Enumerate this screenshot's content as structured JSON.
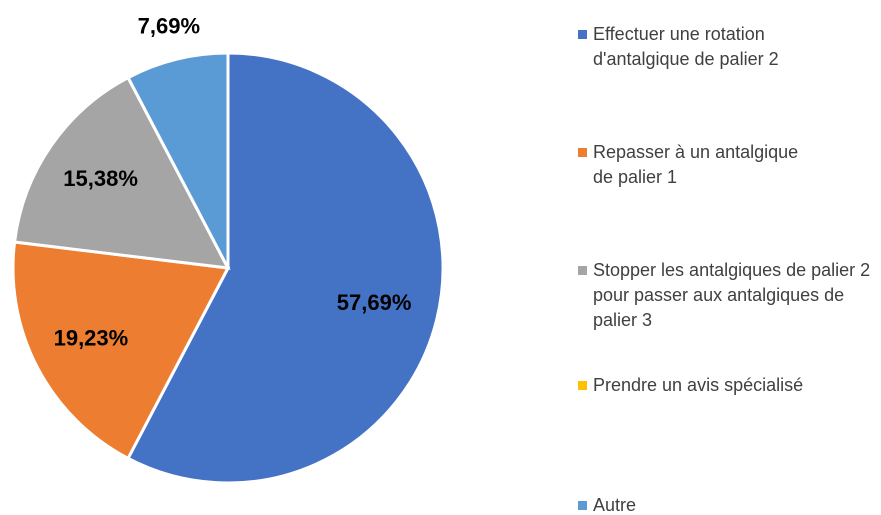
{
  "chart_data": {
    "type": "pie",
    "categories": [
      "Effectuer une rotation d'antalgique de palier 2",
      "Repasser à un antalgique de palier 1",
      "Stopper les antalgiques de palier 2 pour passer aux antalgiques de palier 3",
      "Prendre un avis spécialisé",
      "Autre"
    ],
    "values": [
      57.69,
      19.23,
      15.38,
      0,
      7.69
    ],
    "value_labels": [
      "57,69%",
      "19,23%",
      "15,38%",
      null,
      "7,69%"
    ],
    "colors": [
      "#4472c4",
      "#ed7d31",
      "#a5a5a5",
      "#ffc000",
      "#5b9bd5"
    ],
    "legend": "right"
  }
}
